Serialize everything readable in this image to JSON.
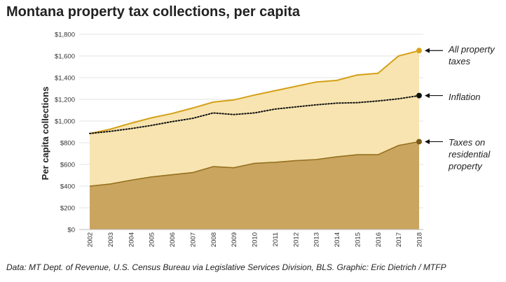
{
  "title": "Montana property tax collections, per capita",
  "source": "Data: MT Dept. of Revenue, U.S. Census Bureau via Legislative Services Division, BLS. Graphic: Eric Dietrich / MTFP",
  "colors": {
    "all_fill": "#f7e4b0",
    "all_line": "#d4a017",
    "all_dot": "#d9a21a",
    "res_fill": "#c9a55f",
    "res_line": "#96701f",
    "res_dot": "#7a5a18",
    "inflation": "#111111",
    "grid": "#e3e3e3"
  },
  "chart_data": {
    "type": "area",
    "ylabel": "Per capita collections",
    "ylim": [
      0,
      1800
    ],
    "yticks": [
      0,
      200,
      400,
      600,
      800,
      1000,
      1200,
      1400,
      1600,
      1800
    ],
    "ytick_labels": [
      "$0",
      "$200",
      "$400",
      "$600",
      "$800",
      "$1,000",
      "$1,200",
      "$1,400",
      "$1,600",
      "$1,800"
    ],
    "categories": [
      "2002",
      "2003",
      "2004",
      "2005",
      "2006",
      "2007",
      "2008",
      "2009",
      "2010",
      "2011",
      "2012",
      "2013",
      "2014",
      "2015",
      "2016",
      "2017",
      "2018"
    ],
    "grid": true,
    "series": [
      {
        "key": "all",
        "name": "All property taxes",
        "style": "area",
        "values": [
          885,
          925,
          980,
          1030,
          1070,
          1120,
          1175,
          1195,
          1240,
          1280,
          1320,
          1360,
          1375,
          1425,
          1440,
          1600,
          1650
        ]
      },
      {
        "key": "inflation",
        "name": "Inflation",
        "style": "dotted-line",
        "values": [
          885,
          905,
          930,
          960,
          995,
          1025,
          1075,
          1060,
          1075,
          1110,
          1130,
          1150,
          1165,
          1170,
          1185,
          1205,
          1235
        ]
      },
      {
        "key": "residential",
        "name": "Taxes on residential property",
        "style": "area",
        "values": [
          400,
          420,
          455,
          485,
          505,
          525,
          580,
          570,
          610,
          620,
          635,
          645,
          670,
          690,
          690,
          775,
          810
        ]
      }
    ],
    "annotations": [
      {
        "series": "all",
        "lines": [
          "All property",
          "taxes"
        ]
      },
      {
        "series": "inflation",
        "lines": [
          "Inflation"
        ]
      },
      {
        "series": "residential",
        "lines": [
          "Taxes on",
          "residential",
          "property"
        ]
      }
    ]
  }
}
